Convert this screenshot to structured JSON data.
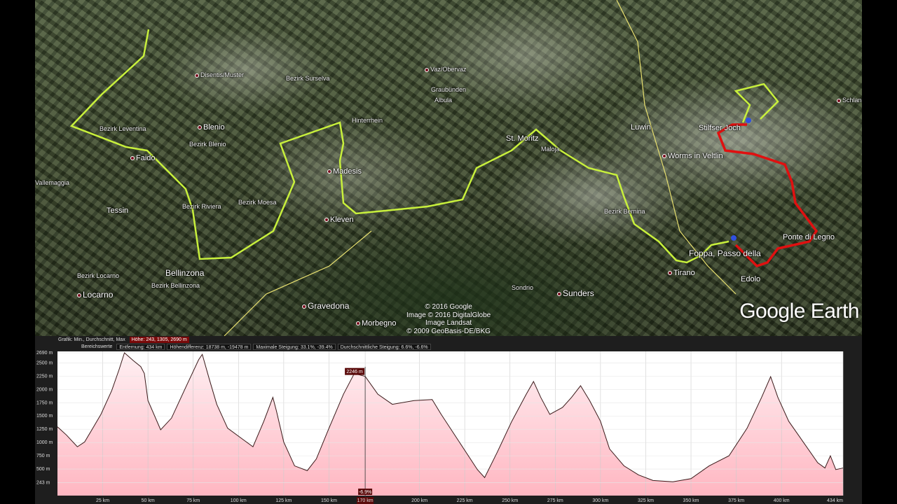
{
  "map": {
    "places": [
      {
        "name": "Disentis/Muster",
        "dot": true,
        "size": "sm"
      },
      {
        "name": "Bezirk Surselva",
        "dot": false,
        "size": "sm"
      },
      {
        "name": "Vaz/Obervaz",
        "dot": true,
        "size": "sm"
      },
      {
        "name": "Graubünden",
        "dot": false,
        "size": "sm"
      },
      {
        "name": "Albula",
        "dot": false,
        "size": "sm"
      },
      {
        "name": "Schlanders",
        "dot": true,
        "size": "sm"
      },
      {
        "name": "Bezirk Leventina",
        "dot": false,
        "size": "sm"
      },
      {
        "name": "Blenio",
        "dot": true,
        "size": ""
      },
      {
        "name": "Bezirk Blenio",
        "dot": false,
        "size": "sm"
      },
      {
        "name": "Hinterrhein",
        "dot": false,
        "size": "sm"
      },
      {
        "name": "St. Moritz",
        "dot": false,
        "size": ""
      },
      {
        "name": "Maloja",
        "dot": false,
        "size": "sm"
      },
      {
        "name": "Luwin",
        "dot": false,
        "size": ""
      },
      {
        "name": "Stilfser Joch",
        "dot": false,
        "size": ""
      },
      {
        "name": "Worms in Veltlin",
        "dot": true,
        "size": ""
      },
      {
        "name": "Faido",
        "dot": true,
        "size": ""
      },
      {
        "name": "Madesis",
        "dot": true,
        "size": ""
      },
      {
        "name": "Vallemaggia",
        "dot": false,
        "size": "sm"
      },
      {
        "name": "Tessin",
        "dot": false,
        "size": ""
      },
      {
        "name": "Bezirk Riviera",
        "dot": false,
        "size": "sm"
      },
      {
        "name": "Bezirk Moesa",
        "dot": false,
        "size": "sm"
      },
      {
        "name": "Kleven",
        "dot": true,
        "size": ""
      },
      {
        "name": "Bezirk Bernina",
        "dot": false,
        "size": "sm"
      },
      {
        "name": "Ponte di Legno",
        "dot": false,
        "size": ""
      },
      {
        "name": "Foppa, Passo della",
        "dot": false,
        "size": "lg"
      },
      {
        "name": "Tirano",
        "dot": true,
        "size": ""
      },
      {
        "name": "Edolo",
        "dot": false,
        "size": ""
      },
      {
        "name": "Bezirk Locarno",
        "dot": false,
        "size": "sm"
      },
      {
        "name": "Bellinzona",
        "dot": false,
        "size": "lg"
      },
      {
        "name": "Bezirk Bellinzona",
        "dot": false,
        "size": "sm"
      },
      {
        "name": "Locarno",
        "dot": true,
        "size": "lg"
      },
      {
        "name": "Gravedona",
        "dot": true,
        "size": "lg"
      },
      {
        "name": "Sondrio",
        "dot": false,
        "size": "sm"
      },
      {
        "name": "Sunders",
        "dot": true,
        "size": "lg"
      },
      {
        "name": "Morbegno",
        "dot": true,
        "size": ""
      }
    ],
    "copyright": [
      "© 2016 Google",
      "Image © 2016 DigitalGlobe",
      "Image Landsat",
      "© 2009 GeoBasis-DE/BKG"
    ],
    "logo": "Google Earth",
    "route_colors": {
      "track": "#c8f03c",
      "selected": "#e01010",
      "border": "#e8e070"
    }
  },
  "profile": {
    "graph_label": "Grafik: Min., Durchschnitt, Max",
    "height_stats": "Höhe: 243, 1305, 2690 m",
    "range_label": "Bereichswerte",
    "distance": "Entfernung: 434 km",
    "elev_diff": "Höhendifferenz: 18738 m, -19478 m",
    "max_slope": "Maximale Steigung: 33.1%, -39.4%",
    "avg_slope": "Durchschnittliche Steigung: 6.6%, -6.6%",
    "cursor_elev": "2246 m",
    "cursor_slope": "-6.9%",
    "cursor_dist": "170 km"
  },
  "chart_data": {
    "type": "area",
    "title": "",
    "xlabel": "",
    "ylabel": "",
    "xlim": [
      0,
      434
    ],
    "ylim": [
      0,
      2690
    ],
    "x_ticks": [
      "25 km",
      "50 km",
      "75 km",
      "100 km",
      "125 km",
      "150 km",
      "170 km",
      "200 km",
      "225 km",
      "250 km",
      "275 km",
      "300 km",
      "325 km",
      "350 km",
      "375 km",
      "400 km",
      "434 km"
    ],
    "x_tick_values": [
      25,
      50,
      75,
      100,
      125,
      150,
      170,
      200,
      225,
      250,
      275,
      300,
      325,
      350,
      375,
      400,
      434
    ],
    "y_ticks": [
      "2690 m",
      "2500 m",
      "2250 m",
      "2000 m",
      "1750 m",
      "1500 m",
      "1250 m",
      "1000 m",
      "750 m",
      "500 m",
      "243 m"
    ],
    "y_tick_values": [
      2690,
      2500,
      2250,
      2000,
      1750,
      1500,
      1250,
      1000,
      750,
      500,
      243
    ],
    "grid": true,
    "fill_color": "#ffb6c1",
    "line_color": "#3a1a1a",
    "cursor": {
      "x": 170,
      "y": 2246
    },
    "x": [
      0,
      5,
      11,
      15,
      19,
      24,
      30,
      34,
      37,
      42,
      46,
      48,
      50,
      57,
      63,
      71,
      78,
      80,
      84,
      88,
      94,
      102,
      108,
      114,
      119,
      121,
      125,
      131,
      138,
      143,
      150,
      158,
      164,
      170,
      177,
      185,
      197,
      207,
      212,
      222,
      232,
      236,
      243,
      251,
      259,
      263,
      267,
      272,
      279,
      284,
      289,
      294,
      300,
      305,
      313,
      321,
      329,
      340,
      350,
      360,
      371,
      381,
      389,
      394,
      398,
      404,
      412,
      420,
      424,
      427,
      430,
      434
    ],
    "y": [
      1295,
      1140,
      920,
      1010,
      1240,
      1530,
      1980,
      2370,
      2690,
      2540,
      2430,
      2300,
      1790,
      1240,
      1460,
      2050,
      2560,
      2660,
      2180,
      1720,
      1270,
      1070,
      920,
      1400,
      1850,
      1590,
      1010,
      560,
      470,
      690,
      1270,
      1910,
      2300,
      2246,
      1910,
      1720,
      1790,
      1810,
      1530,
      1010,
      490,
      340,
      820,
      1400,
      1910,
      2150,
      1850,
      1530,
      1660,
      1850,
      2070,
      1790,
      1400,
      880,
      560,
      390,
      285,
      260,
      320,
      560,
      750,
      1270,
      1850,
      2240,
      1850,
      1400,
      1010,
      620,
      520,
      750,
      490,
      520
    ]
  }
}
